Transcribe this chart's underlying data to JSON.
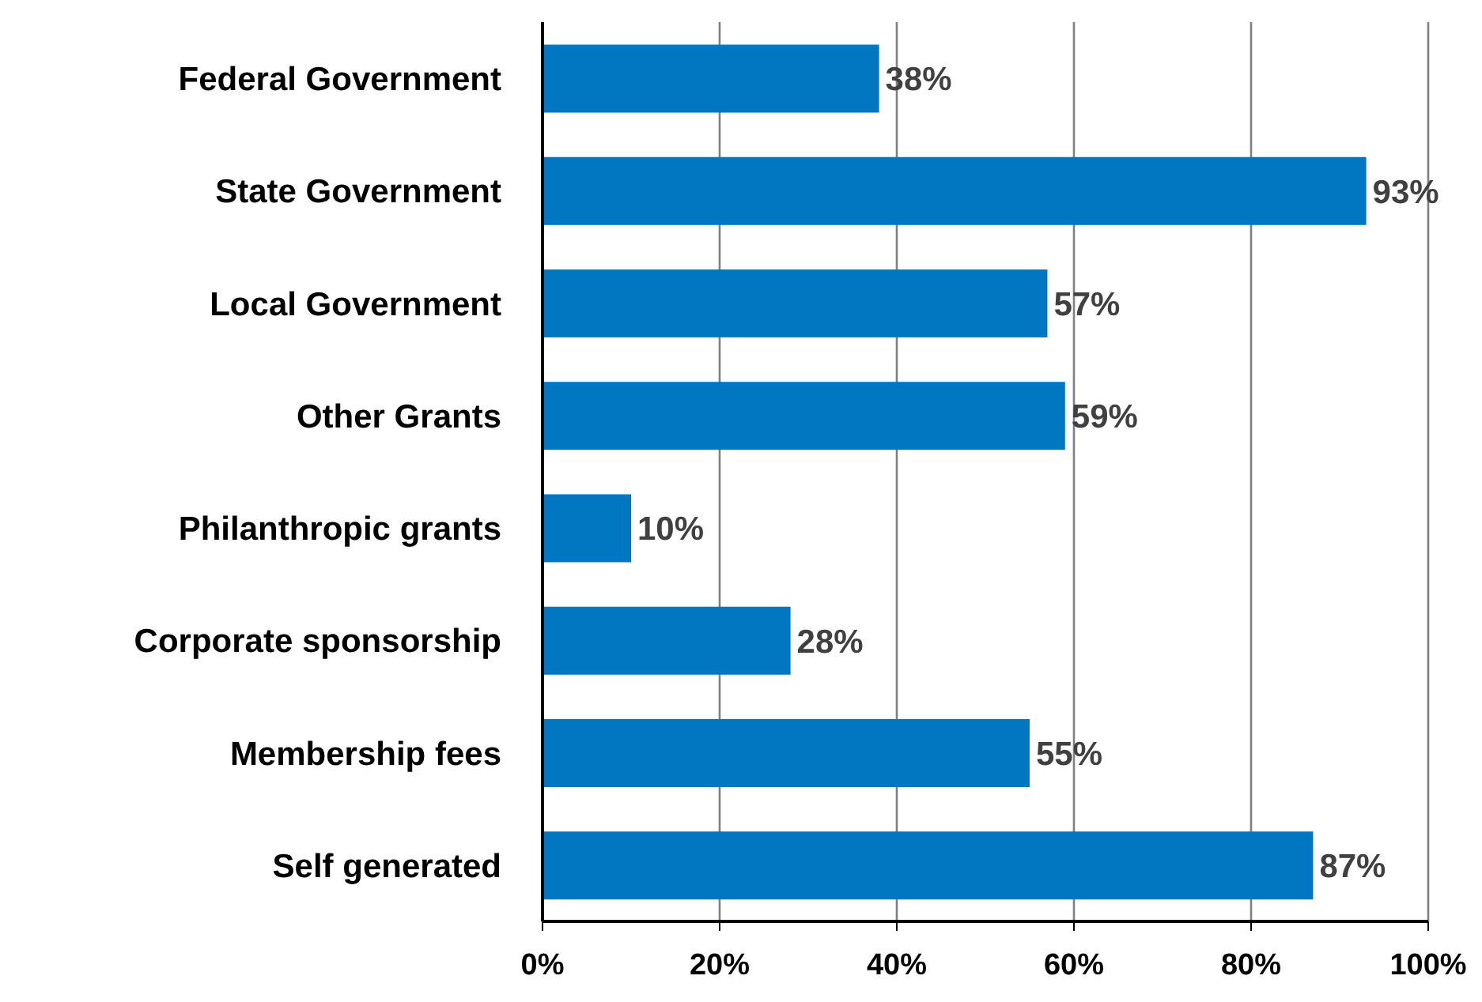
{
  "chart_data": {
    "type": "bar",
    "orientation": "horizontal",
    "categories": [
      "Federal Government",
      "State Government",
      "Local Government",
      "Other Grants",
      "Philanthropic grants",
      "Corporate sponsorship",
      "Membership fees",
      "Self generated"
    ],
    "values": [
      38,
      93,
      57,
      59,
      10,
      28,
      55,
      87
    ],
    "value_labels": [
      "38%",
      "93%",
      "57%",
      "59%",
      "10%",
      "28%",
      "55%",
      "87%"
    ],
    "color": "#0077c0",
    "xlim": [
      0,
      100
    ],
    "xticks": [
      {
        "value": 0,
        "label": "0%"
      },
      {
        "value": 20,
        "label": "20%"
      },
      {
        "value": 40,
        "label": "40%"
      },
      {
        "value": 60,
        "label": "60%"
      },
      {
        "value": 80,
        "label": "80%"
      },
      {
        "value": 100,
        "label": "100%"
      }
    ],
    "grid": "x",
    "legend": false
  }
}
